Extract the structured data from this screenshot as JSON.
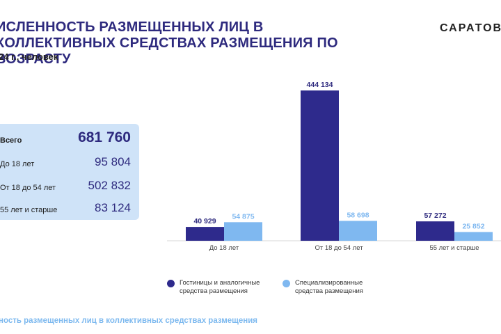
{
  "header": {
    "title": "ИСЛЕННОСТЬ РАЗМЕЩЕННЫХ ЛИЦ В КОЛЛЕКТИВНЫХ СРЕДСТВАХ РАЗМЕЩЕНИЯ ПО ВОЗРАСТУ",
    "subtitle": "24 г., человек",
    "brand": "САРАТОВС"
  },
  "totals": {
    "rows": [
      {
        "label": "Всего",
        "value": "681 760"
      },
      {
        "label": "До 18 лет",
        "value": "95 804"
      },
      {
        "label": "От 18 до 54 лет",
        "value": "502 832"
      },
      {
        "label": "55 лет и старше",
        "value": "83 124"
      }
    ]
  },
  "legend": {
    "items": [
      {
        "label": "Гостиницы и аналогичные средства размещения",
        "color": "#2e2a8c"
      },
      {
        "label": "Специализированные средства размещения",
        "color": "#7fb8f0"
      }
    ]
  },
  "footer": "ность размещенных лиц в коллективных средствах размещения",
  "chart_data": {
    "type": "bar",
    "categories": [
      "До 18 лет",
      "От 18 до 54 лет",
      "55 лет и старше"
    ],
    "series": [
      {
        "name": "Гостиницы и аналогичные средства размещения",
        "values": [
          40929,
          444134,
          57272
        ],
        "labels": [
          "40 929",
          "444 134",
          "57 272"
        ],
        "color": "#2e2a8c"
      },
      {
        "name": "Специализированные средства размещения",
        "values": [
          54875,
          58698,
          25852
        ],
        "labels": [
          "54 875",
          "58 698",
          "25 852"
        ],
        "color": "#7fb8f0"
      }
    ],
    "ylim": [
      0,
      444134
    ],
    "grid": false,
    "legend_position": "bottom"
  }
}
